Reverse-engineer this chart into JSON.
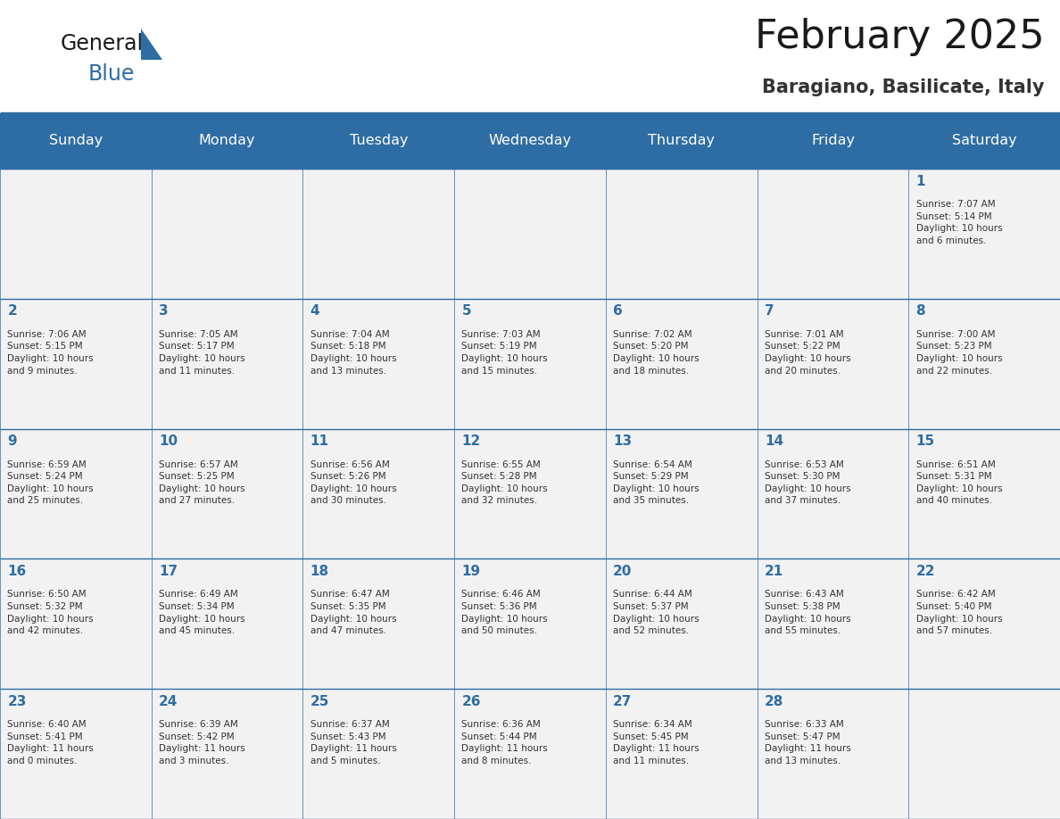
{
  "title": "February 2025",
  "subtitle": "Baragiano, Basilicate, Italy",
  "header_bg": "#2E6DA4",
  "header_text_color": "#FFFFFF",
  "cell_bg": "#F2F2F2",
  "border_color": "#2E6DA4",
  "title_color": "#1a1a1a",
  "subtitle_color": "#333333",
  "day_number_color": "#2E6DA4",
  "cell_text_color": "#333333",
  "days_of_week": [
    "Sunday",
    "Monday",
    "Tuesday",
    "Wednesday",
    "Thursday",
    "Friday",
    "Saturday"
  ],
  "weeks": [
    [
      {
        "day": 0,
        "text": ""
      },
      {
        "day": 0,
        "text": ""
      },
      {
        "day": 0,
        "text": ""
      },
      {
        "day": 0,
        "text": ""
      },
      {
        "day": 0,
        "text": ""
      },
      {
        "day": 0,
        "text": ""
      },
      {
        "day": 1,
        "text": "Sunrise: 7:07 AM\nSunset: 5:14 PM\nDaylight: 10 hours\nand 6 minutes."
      }
    ],
    [
      {
        "day": 2,
        "text": "Sunrise: 7:06 AM\nSunset: 5:15 PM\nDaylight: 10 hours\nand 9 minutes."
      },
      {
        "day": 3,
        "text": "Sunrise: 7:05 AM\nSunset: 5:17 PM\nDaylight: 10 hours\nand 11 minutes."
      },
      {
        "day": 4,
        "text": "Sunrise: 7:04 AM\nSunset: 5:18 PM\nDaylight: 10 hours\nand 13 minutes."
      },
      {
        "day": 5,
        "text": "Sunrise: 7:03 AM\nSunset: 5:19 PM\nDaylight: 10 hours\nand 15 minutes."
      },
      {
        "day": 6,
        "text": "Sunrise: 7:02 AM\nSunset: 5:20 PM\nDaylight: 10 hours\nand 18 minutes."
      },
      {
        "day": 7,
        "text": "Sunrise: 7:01 AM\nSunset: 5:22 PM\nDaylight: 10 hours\nand 20 minutes."
      },
      {
        "day": 8,
        "text": "Sunrise: 7:00 AM\nSunset: 5:23 PM\nDaylight: 10 hours\nand 22 minutes."
      }
    ],
    [
      {
        "day": 9,
        "text": "Sunrise: 6:59 AM\nSunset: 5:24 PM\nDaylight: 10 hours\nand 25 minutes."
      },
      {
        "day": 10,
        "text": "Sunrise: 6:57 AM\nSunset: 5:25 PM\nDaylight: 10 hours\nand 27 minutes."
      },
      {
        "day": 11,
        "text": "Sunrise: 6:56 AM\nSunset: 5:26 PM\nDaylight: 10 hours\nand 30 minutes."
      },
      {
        "day": 12,
        "text": "Sunrise: 6:55 AM\nSunset: 5:28 PM\nDaylight: 10 hours\nand 32 minutes."
      },
      {
        "day": 13,
        "text": "Sunrise: 6:54 AM\nSunset: 5:29 PM\nDaylight: 10 hours\nand 35 minutes."
      },
      {
        "day": 14,
        "text": "Sunrise: 6:53 AM\nSunset: 5:30 PM\nDaylight: 10 hours\nand 37 minutes."
      },
      {
        "day": 15,
        "text": "Sunrise: 6:51 AM\nSunset: 5:31 PM\nDaylight: 10 hours\nand 40 minutes."
      }
    ],
    [
      {
        "day": 16,
        "text": "Sunrise: 6:50 AM\nSunset: 5:32 PM\nDaylight: 10 hours\nand 42 minutes."
      },
      {
        "day": 17,
        "text": "Sunrise: 6:49 AM\nSunset: 5:34 PM\nDaylight: 10 hours\nand 45 minutes."
      },
      {
        "day": 18,
        "text": "Sunrise: 6:47 AM\nSunset: 5:35 PM\nDaylight: 10 hours\nand 47 minutes."
      },
      {
        "day": 19,
        "text": "Sunrise: 6:46 AM\nSunset: 5:36 PM\nDaylight: 10 hours\nand 50 minutes."
      },
      {
        "day": 20,
        "text": "Sunrise: 6:44 AM\nSunset: 5:37 PM\nDaylight: 10 hours\nand 52 minutes."
      },
      {
        "day": 21,
        "text": "Sunrise: 6:43 AM\nSunset: 5:38 PM\nDaylight: 10 hours\nand 55 minutes."
      },
      {
        "day": 22,
        "text": "Sunrise: 6:42 AM\nSunset: 5:40 PM\nDaylight: 10 hours\nand 57 minutes."
      }
    ],
    [
      {
        "day": 23,
        "text": "Sunrise: 6:40 AM\nSunset: 5:41 PM\nDaylight: 11 hours\nand 0 minutes."
      },
      {
        "day": 24,
        "text": "Sunrise: 6:39 AM\nSunset: 5:42 PM\nDaylight: 11 hours\nand 3 minutes."
      },
      {
        "day": 25,
        "text": "Sunrise: 6:37 AM\nSunset: 5:43 PM\nDaylight: 11 hours\nand 5 minutes."
      },
      {
        "day": 26,
        "text": "Sunrise: 6:36 AM\nSunset: 5:44 PM\nDaylight: 11 hours\nand 8 minutes."
      },
      {
        "day": 27,
        "text": "Sunrise: 6:34 AM\nSunset: 5:45 PM\nDaylight: 11 hours\nand 11 minutes."
      },
      {
        "day": 28,
        "text": "Sunrise: 6:33 AM\nSunset: 5:47 PM\nDaylight: 11 hours\nand 13 minutes."
      },
      {
        "day": 0,
        "text": ""
      }
    ]
  ],
  "logo_text1": "General",
  "logo_text2": "Blue",
  "logo_color1": "#1a1a1a",
  "logo_color2": "#2E6DA4",
  "logo_triangle_color": "#2E6DA4",
  "title_fontsize": 32,
  "subtitle_fontsize": 15,
  "header_fontsize": 11.5,
  "day_num_fontsize": 11,
  "cell_text_fontsize": 7.5
}
